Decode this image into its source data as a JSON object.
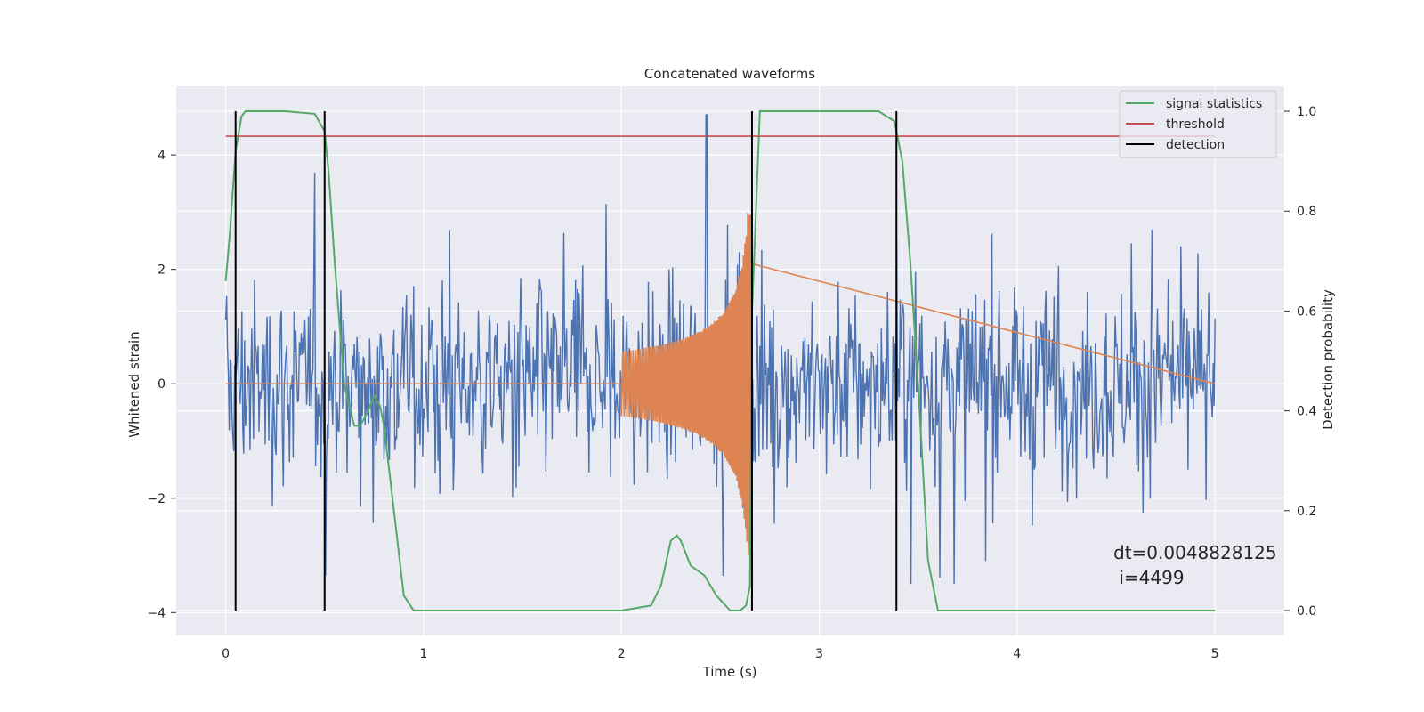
{
  "chart_data": {
    "type": "line",
    "title": "Concatenated waveforms",
    "xlabel": "Time (s)",
    "ylabel": "Whitened strain",
    "y2label": "Detection probability",
    "xlim": [
      -0.25,
      5.35
    ],
    "ylim": [
      -4.4,
      5.2
    ],
    "y2lim": [
      -0.05,
      1.05
    ],
    "xticks": [
      0,
      1,
      2,
      3,
      4,
      5
    ],
    "xtick_labels": [
      "0",
      "1",
      "2",
      "3",
      "4",
      "5"
    ],
    "yticks": [
      -4,
      -2,
      0,
      2,
      4
    ],
    "ytick_labels": [
      "−4",
      "−2",
      "0",
      "2",
      "4"
    ],
    "y2ticks": [
      0.0,
      0.2,
      0.4,
      0.6,
      0.8,
      1.0
    ],
    "y2tick_labels": [
      "0.0",
      "0.2",
      "0.4",
      "0.6",
      "0.8",
      "1.0"
    ],
    "grid": true,
    "legend_position": "top-right",
    "colors": {
      "background": "#eaeaf2",
      "grid": "#ffffff",
      "noise": "#4c72b0",
      "injected": "#dd8452",
      "signal_statistics": "#55a868",
      "threshold": "#c44e52",
      "detection": "#000000"
    },
    "series": [
      {
        "name": "",
        "axis": "left",
        "kind": "noise",
        "x_start": 0.0,
        "x_end": 5.0,
        "amplitude_range": [
          -3.5,
          4.7
        ],
        "spike_max": {
          "x": 2.43,
          "y": 4.7
        }
      },
      {
        "name": "",
        "axis": "left",
        "kind": "chirp",
        "x_start": 2.0,
        "x_end": 2.66,
        "peak_amplitude": 3.0,
        "baseline": 0
      },
      {
        "name": "signal statistics",
        "axis": "right",
        "x": [
          0.0,
          0.02,
          0.05,
          0.08,
          0.1,
          0.15,
          0.3,
          0.45,
          0.5,
          0.52,
          0.55,
          0.6,
          0.65,
          0.68,
          0.72,
          0.75,
          0.78,
          0.8,
          0.85,
          0.9,
          0.95,
          1.0,
          1.5,
          2.0,
          2.15,
          2.2,
          2.25,
          2.28,
          2.3,
          2.35,
          2.42,
          2.48,
          2.55,
          2.6,
          2.63,
          2.65,
          2.66,
          2.7,
          3.0,
          3.3,
          3.38,
          3.42,
          3.46,
          3.5,
          3.55,
          3.6,
          4.0,
          4.5,
          5.0
        ],
        "y": [
          0.66,
          0.75,
          0.92,
          0.99,
          1.0,
          1.0,
          1.0,
          0.995,
          0.96,
          0.88,
          0.7,
          0.45,
          0.37,
          0.37,
          0.4,
          0.43,
          0.41,
          0.37,
          0.2,
          0.03,
          0.0,
          0.0,
          0.0,
          0.0,
          0.01,
          0.05,
          0.14,
          0.15,
          0.14,
          0.09,
          0.07,
          0.03,
          0.0,
          0.0,
          0.01,
          0.05,
          0.6,
          1.0,
          1.0,
          1.0,
          0.98,
          0.9,
          0.7,
          0.45,
          0.1,
          0.0,
          0.0,
          0.0,
          0.0
        ]
      },
      {
        "name": "threshold",
        "axis": "right",
        "x": [
          0.0,
          5.0
        ],
        "y": [
          0.95,
          0.95
        ]
      },
      {
        "name": "detection",
        "axis": "right",
        "x_positions": [
          0.05,
          0.5,
          2.66,
          3.39
        ],
        "y_range": [
          0.0,
          1.0
        ]
      }
    ],
    "legend": [
      {
        "label": "signal statistics",
        "color": "#55a868"
      },
      {
        "label": "threshold",
        "color": "#c44e52"
      },
      {
        "label": "detection",
        "color": "#000000"
      }
    ],
    "annotation": {
      "line1": "dt=0.0048828125",
      "line2": " i=4499"
    }
  }
}
